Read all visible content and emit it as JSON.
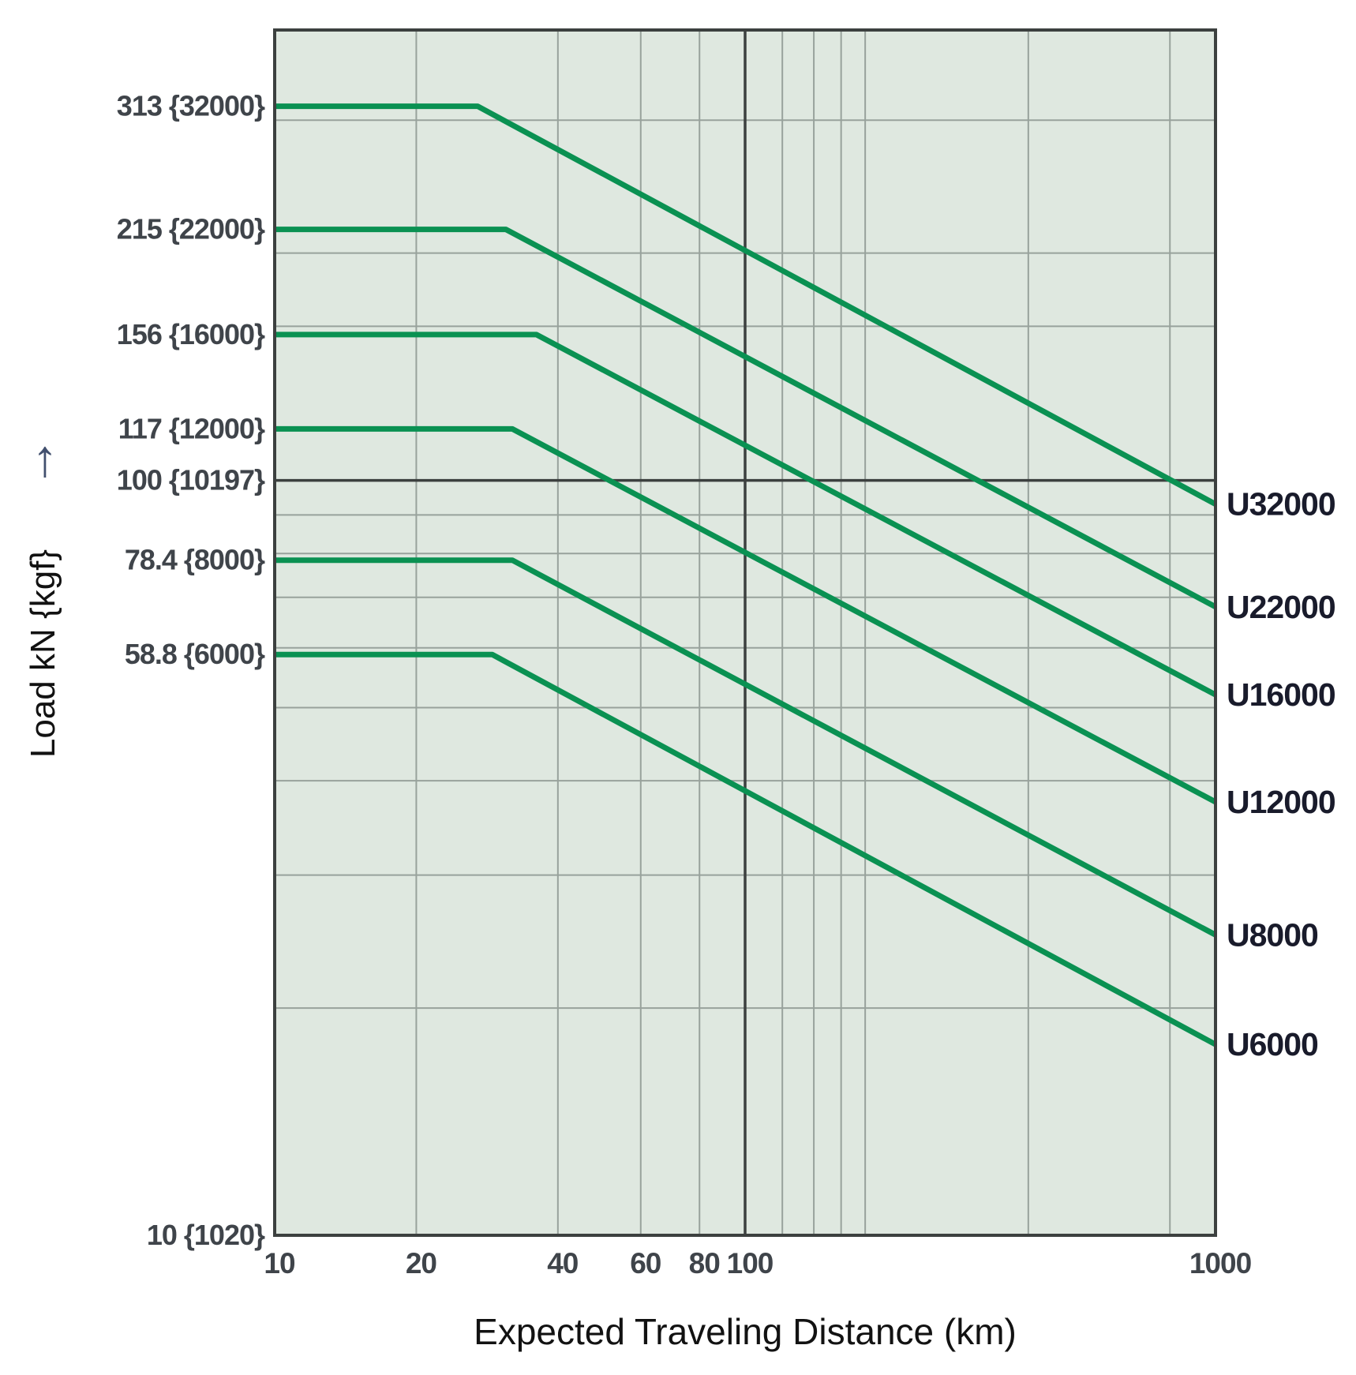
{
  "page": {
    "background": "#ffffff"
  },
  "chart_data": {
    "type": "line",
    "title": "",
    "xlabel": "Expected Traveling Distance (km)",
    "ylabel": "Load kN {kgf}",
    "y_axis_arrow": "↑",
    "x_scale": "log",
    "y_scale": "log",
    "xlim": [
      10,
      1000
    ],
    "ylim": [
      10,
      395
    ],
    "grid_on": true,
    "legend_position": "right-outside",
    "x_ticks": [
      {
        "v": 10,
        "label": "10"
      },
      {
        "v": 20,
        "label": "20"
      },
      {
        "v": 40,
        "label": "40"
      },
      {
        "v": 60,
        "label": "60"
      },
      {
        "v": 80,
        "label": "80"
      },
      {
        "v": 100,
        "label": "100"
      },
      {
        "v": 1000,
        "label": "1000"
      }
    ],
    "y_tick_annotations": [
      {
        "v": 313,
        "label": "313 {32000}"
      },
      {
        "v": 215,
        "label": "215 {22000}"
      },
      {
        "v": 156,
        "label": "156 {16000}"
      },
      {
        "v": 117,
        "label": "117 {12000}"
      },
      {
        "v": 100,
        "label": "100 {10197}"
      },
      {
        "v": 78.4,
        "label": "78.4 {8000}"
      },
      {
        "v": 58.8,
        "label": "58.8 {6000}"
      },
      {
        "v": 10,
        "label": "10 {1020}"
      }
    ],
    "grid": {
      "x_minor": [
        20,
        40,
        60,
        80,
        120,
        140,
        160,
        180,
        400,
        800
      ],
      "x_dark": [
        100
      ],
      "y_minor": [
        20,
        30,
        40,
        50,
        60,
        70,
        80,
        90,
        160,
        200,
        300
      ],
      "y_dark": [
        100
      ]
    },
    "series": [
      {
        "name": "U32000",
        "points": [
          [
            10,
            313
          ],
          [
            27,
            313
          ],
          [
            1000,
            93
          ]
        ]
      },
      {
        "name": "U22000",
        "points": [
          [
            10,
            215
          ],
          [
            31,
            215
          ],
          [
            1000,
            68
          ]
        ]
      },
      {
        "name": "U16000",
        "points": [
          [
            10,
            156
          ],
          [
            36,
            156
          ],
          [
            1000,
            52
          ]
        ]
      },
      {
        "name": "U12000",
        "points": [
          [
            10,
            117
          ],
          [
            32,
            117
          ],
          [
            1000,
            37.5
          ]
        ]
      },
      {
        "name": "U8000",
        "points": [
          [
            10,
            78.4
          ],
          [
            32,
            78.4
          ],
          [
            1000,
            25
          ]
        ]
      },
      {
        "name": "U6000",
        "points": [
          [
            10,
            58.8
          ],
          [
            29,
            58.8
          ],
          [
            1000,
            17.9
          ]
        ]
      }
    ],
    "colors": {
      "curve": "#0a9152",
      "plot_bg": "#dfe8e0",
      "grid_minor": "#98a29c",
      "grid_dark": "#3c403f",
      "border": "#3c403f",
      "tick_text": "#3f444a",
      "series_label": "#191b2b",
      "title_text": "#121212",
      "arrow": "#42506e"
    }
  }
}
